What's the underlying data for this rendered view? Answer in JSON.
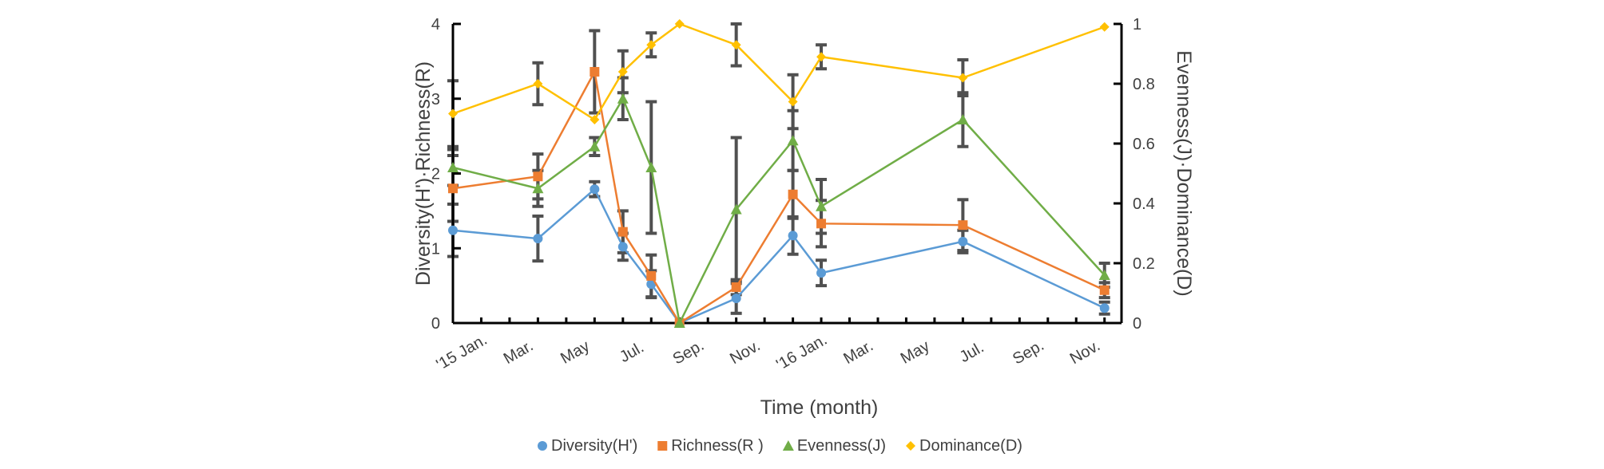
{
  "chart_data": {
    "type": "line",
    "xlabel": "Time (month)",
    "ylabel_left": "Diversity(H')·Richness(R)",
    "ylabel_right": "Evenness(J)·Dominance(D)",
    "x_ticks": [
      "'15 Jan.",
      "Mar.",
      "May",
      "Jul.",
      "Sep.",
      "Nov.",
      "'16 Jan.",
      "Mar.",
      "May",
      "Jul.",
      "Sep.",
      "Nov."
    ],
    "y_left": {
      "min": 0,
      "max": 4,
      "ticks": [
        "0",
        "1",
        "2",
        "3",
        "4"
      ]
    },
    "y_right": {
      "min": 0,
      "max": 1,
      "ticks": [
        "0",
        "0.2",
        "0.4",
        "0.6",
        "0.8",
        "1"
      ]
    },
    "x_range": [
      0,
      23.6
    ],
    "legend_position": "bottom",
    "series": [
      {
        "name": "Diversity(H')",
        "axis": "left",
        "color": "#5B9BD5",
        "marker": "circle",
        "x": [
          0,
          3,
          5,
          6,
          7,
          8,
          10,
          12,
          13,
          18,
          23
        ],
        "y": [
          1.24,
          1.13,
          1.79,
          1.02,
          0.52,
          0.0,
          0.33,
          1.17,
          0.67,
          1.09,
          0.2
        ],
        "err": [
          0.35,
          0.3,
          0.1,
          0.18,
          0.18,
          0.0,
          0.2,
          0.25,
          0.17,
          0.15,
          0.08
        ]
      },
      {
        "name": "Richness(R )",
        "axis": "left",
        "color": "#ED7D31",
        "marker": "square",
        "x": [
          0,
          3,
          5,
          6,
          7,
          8,
          10,
          12,
          13,
          18,
          23
        ],
        "y": [
          1.8,
          1.96,
          3.36,
          1.22,
          0.63,
          0.0,
          0.48,
          1.72,
          1.33,
          1.31,
          0.44
        ],
        "err": [
          0.44,
          0.3,
          0.55,
          0.28,
          0.28,
          0.0,
          0.1,
          0.32,
          0.31,
          0.34,
          0.1
        ]
      },
      {
        "name": "Evenness(J)",
        "axis": "right",
        "color": "#70AD47",
        "marker": "triangle",
        "x": [
          0,
          3,
          5,
          6,
          7,
          8,
          10,
          12,
          13,
          18,
          23
        ],
        "y": [
          0.52,
          0.45,
          0.59,
          0.75,
          0.52,
          0.0,
          0.38,
          0.61,
          0.39,
          0.68,
          0.16
        ],
        "err": [
          0.06,
          0.06,
          0.03,
          0.07,
          0.22,
          0.0,
          0.24,
          0.1,
          0.09,
          0.09,
          0.04
        ]
      },
      {
        "name": "Dominance(D)",
        "axis": "right",
        "color": "#FFC000",
        "marker": "diamond",
        "x": [
          0,
          3,
          5,
          6,
          7,
          8,
          10,
          12,
          13,
          18,
          23
        ],
        "y": [
          0.7,
          0.8,
          0.68,
          0.84,
          0.93,
          1.0,
          0.93,
          0.74,
          0.89,
          0.82,
          0.99
        ],
        "err": [
          0.11,
          0.07,
          0.0,
          0.07,
          0.04,
          0.0,
          0.07,
          0.09,
          0.04,
          0.06,
          0.0
        ]
      }
    ]
  }
}
